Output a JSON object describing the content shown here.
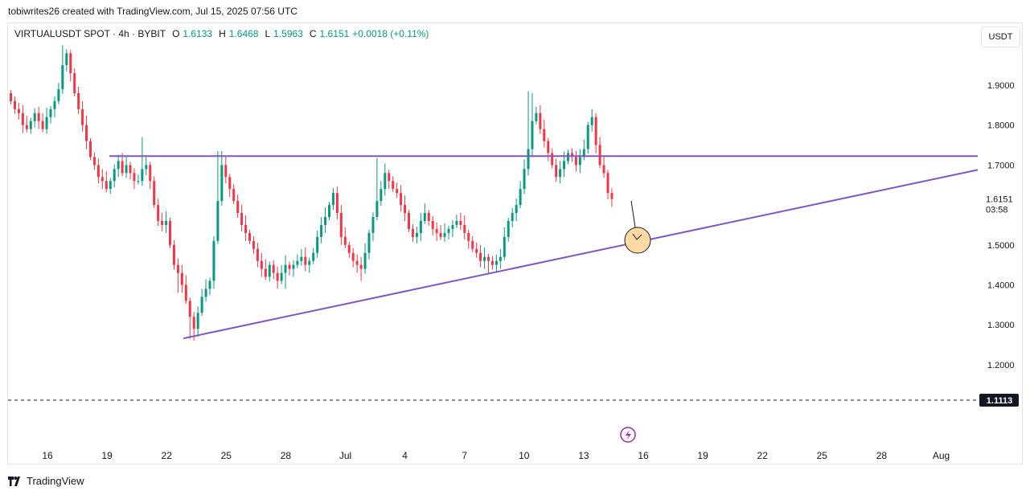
{
  "credit": "tobiwrites26 created with TradingView.com, Jul 15, 2025 07:56 UTC",
  "legend": {
    "symbol": "VIRTUALUSDT SPOT · 4h · BYBIT",
    "o_label": "O",
    "o": "1.6133",
    "h_label": "H",
    "h": "1.6468",
    "l_label": "L",
    "l": "1.5963",
    "c_label": "C",
    "c": "1.6151",
    "change": "+0.0018 (+0.11%)"
  },
  "currency_button": "USDT",
  "brand": "TradingView",
  "colors": {
    "up": "#089981",
    "down": "#f23645",
    "trendline": "#7e57c2",
    "highlight_fill": "#fdd9a3",
    "highlight_stroke": "#1c1c1c",
    "text": "#131722",
    "grid_border": "#e0e3eb"
  },
  "chart_data": {
    "type": "candlestick",
    "title": "VIRTUALUSDT SPOT · 4h · BYBIT",
    "y_axis": {
      "side": "right",
      "ticks": [
        "1.9000",
        "1.8000",
        "1.7000",
        "1.5000",
        "1.4000",
        "1.3000",
        "1.2000"
      ],
      "range": [
        1.09,
        2.04
      ]
    },
    "x_axis": {
      "ticks": [
        "16",
        "19",
        "22",
        "25",
        "28",
        "Jul",
        "4",
        "7",
        "10",
        "13",
        "16",
        "19",
        "22",
        "25",
        "28",
        "Aug"
      ]
    },
    "last_price": {
      "value": "1.6151",
      "countdown": "03:58"
    },
    "dashed_level": {
      "value": "1.1113"
    },
    "candles_close": [
      1.86,
      1.84,
      1.83,
      1.8,
      1.79,
      1.81,
      1.83,
      1.81,
      1.79,
      1.82,
      1.84,
      1.86,
      1.89,
      1.95,
      1.98,
      1.93,
      1.88,
      1.84,
      1.8,
      1.76,
      1.72,
      1.7,
      1.67,
      1.66,
      1.64,
      1.66,
      1.69,
      1.71,
      1.68,
      1.7,
      1.68,
      1.66,
      1.66,
      1.69,
      1.7,
      1.66,
      1.6,
      1.56,
      1.55,
      1.56,
      1.5,
      1.45,
      1.43,
      1.4,
      1.36,
      1.32,
      1.29,
      1.33,
      1.37,
      1.39,
      1.41,
      1.51,
      1.61,
      1.7,
      1.67,
      1.64,
      1.61,
      1.58,
      1.55,
      1.53,
      1.51,
      1.49,
      1.46,
      1.44,
      1.42,
      1.45,
      1.43,
      1.41,
      1.43,
      1.45,
      1.44,
      1.45,
      1.46,
      1.47,
      1.45,
      1.46,
      1.48,
      1.52,
      1.55,
      1.57,
      1.6,
      1.63,
      1.58,
      1.52,
      1.5,
      1.48,
      1.46,
      1.45,
      1.44,
      1.48,
      1.53,
      1.57,
      1.61,
      1.64,
      1.68,
      1.66,
      1.64,
      1.63,
      1.6,
      1.58,
      1.54,
      1.52,
      1.53,
      1.56,
      1.58,
      1.56,
      1.54,
      1.53,
      1.52,
      1.53,
      1.54,
      1.55,
      1.56,
      1.55,
      1.53,
      1.51,
      1.49,
      1.48,
      1.46,
      1.47,
      1.46,
      1.45,
      1.46,
      1.47,
      1.52,
      1.56,
      1.58,
      1.6,
      1.64,
      1.69,
      1.74,
      1.81,
      1.83,
      1.79,
      1.76,
      1.73,
      1.7,
      1.67,
      1.69,
      1.71,
      1.73,
      1.72,
      1.7,
      1.72,
      1.74,
      1.8,
      1.82,
      1.75,
      1.7,
      1.68,
      1.63,
      1.6151
    ],
    "trendlines": [
      {
        "name": "resistance",
        "points": [
          [
            1.7225
          ],
          [
            1.7225
          ]
        ]
      },
      {
        "name": "support",
        "points": [
          [
            1.266
          ],
          [
            1.688
          ]
        ]
      }
    ]
  }
}
